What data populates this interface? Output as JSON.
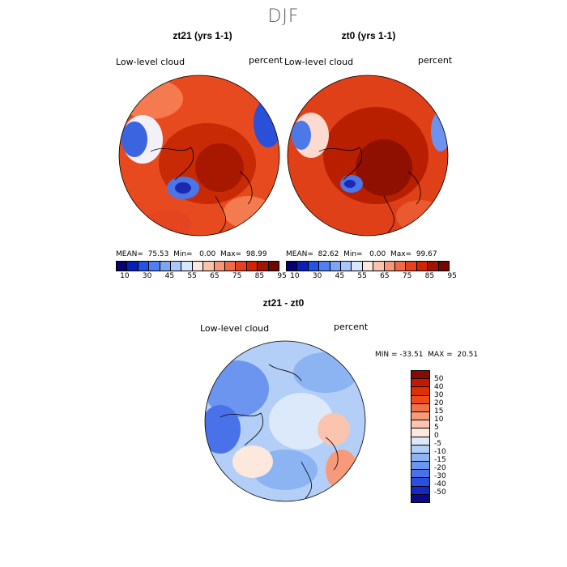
{
  "figure": {
    "season": "DJF"
  },
  "panels": {
    "left": {
      "title": "zt21 (yrs 1-1)",
      "variable": "Low-level cloud",
      "units": "percent",
      "stats": "MEAN=  75.53  Min=   0.00  Max=  98.99"
    },
    "right": {
      "title": "zt0 (yrs 1-1)",
      "variable": "Low-level cloud",
      "units": "percent",
      "stats": "MEAN=  82.62  Min=   0.00  Max=  99.67"
    },
    "diff": {
      "title": "zt21 - zt0",
      "variable": "Low-level cloud",
      "units": "percent",
      "stats": "MIN = -33.51  MAX =  20.51"
    }
  },
  "colorbar_abs": {
    "ticks": [
      "10",
      "30",
      "45",
      "55",
      "65",
      "75",
      "85",
      "95"
    ],
    "colors": [
      "#08006e",
      "#0a1fb5",
      "#1f54e6",
      "#4f80f0",
      "#7ba6f6",
      "#a9c7fa",
      "#d6e6fc",
      "#fbe7e2",
      "#f9c3ae",
      "#f7977a",
      "#f0694a",
      "#e54020",
      "#d12400",
      "#a01500",
      "#6e0800"
    ]
  },
  "colorbar_diff": {
    "ticks": [
      "50",
      "40",
      "30",
      "20",
      "15",
      "10",
      "5",
      "0",
      "-5",
      "-10",
      "-15",
      "-20",
      "-30",
      "-40",
      "-50"
    ],
    "colors": [
      "#8b0a00",
      "#c41800",
      "#e03000",
      "#f04a1a",
      "#f47048",
      "#f79a7a",
      "#fac4ae",
      "#fde8de",
      "#dce9fb",
      "#b3cff7",
      "#8cb3f2",
      "#6b95ee",
      "#4a72e8",
      "#2a4ee0",
      "#1428c8",
      "#080a8a"
    ]
  }
}
